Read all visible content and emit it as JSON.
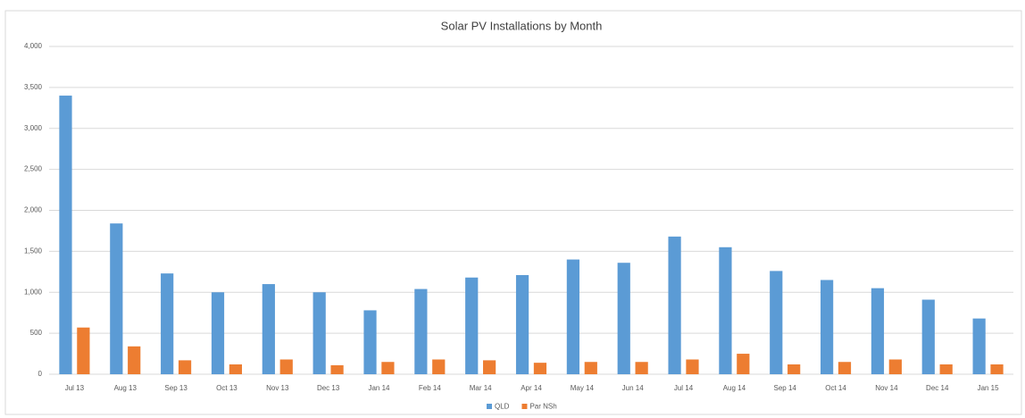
{
  "chart_data": {
    "type": "bar",
    "title": "Solar PV Installations by Month",
    "categories": [
      "Jul 13",
      "Aug 13",
      "Sep 13",
      "Oct 13",
      "Nov 13",
      "Dec 13",
      "Jan 14",
      "Feb 14",
      "Mar 14",
      "Apr 14",
      "May 14",
      "Jun 14",
      "Jul 14",
      "Aug 14",
      "Sep 14",
      "Oct 14",
      "Nov 14",
      "Dec 14",
      "Jan 15"
    ],
    "series": [
      {
        "name": "QLD",
        "color": "#5b9bd5",
        "values": [
          3400,
          1840,
          1230,
          1000,
          1100,
          1000,
          780,
          1040,
          1180,
          1210,
          1400,
          1360,
          1680,
          1550,
          1260,
          1150,
          1050,
          910,
          680
        ]
      },
      {
        "name": "Par NSh",
        "color": "#ed7d31",
        "values": [
          570,
          340,
          170,
          120,
          180,
          110,
          150,
          180,
          170,
          140,
          150,
          150,
          180,
          250,
          120,
          150,
          180,
          120,
          120
        ]
      }
    ],
    "ylim": [
      0,
      4000
    ],
    "yticks": [
      0,
      500,
      {
        "value": 1000,
        "label": "1,000"
      },
      {
        "value": 1500,
        "label": "1,500"
      },
      {
        "value": 2000,
        "label": "2,000"
      },
      {
        "value": 2500,
        "label": "2,500"
      },
      {
        "value": 3000,
        "label": "3,000"
      },
      {
        "value": 3500,
        "label": "3,500"
      },
      {
        "value": 4000,
        "label": "4,000"
      }
    ],
    "grid": true,
    "legend": "bottom"
  }
}
